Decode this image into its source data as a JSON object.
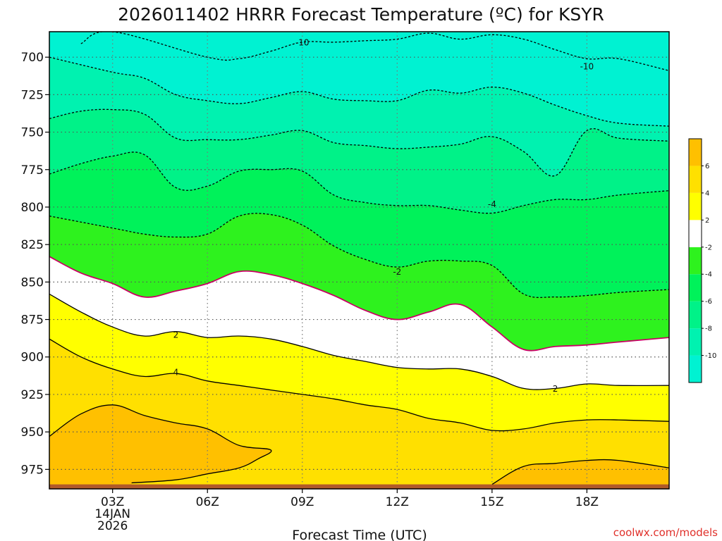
{
  "chart_data": {
    "type": "contour",
    "title": "2026011402 HRRR Forecast Temperature (ºC) for KSYR",
    "xlabel": "Forecast Time (UTC)",
    "ylabel": "",
    "credit": "coolwx.com/models",
    "xlim": [
      1.0,
      20.6
    ],
    "ylim": [
      988,
      683
    ],
    "x_ticks": [
      {
        "x": 3,
        "label": "03Z",
        "sub1": "14JAN",
        "sub2": "2026"
      },
      {
        "x": 6,
        "label": "06Z"
      },
      {
        "x": 9,
        "label": "09Z"
      },
      {
        "x": 12,
        "label": "12Z"
      },
      {
        "x": 15,
        "label": "15Z"
      },
      {
        "x": 18,
        "label": "18Z"
      }
    ],
    "y_ticks": [
      700,
      725,
      750,
      775,
      800,
      825,
      850,
      875,
      900,
      925,
      950,
      975
    ],
    "ground_top_hpa": 985,
    "colorbar": {
      "levels": [
        -12,
        -10,
        -8,
        -6,
        -4,
        -2,
        2,
        4,
        6,
        8
      ],
      "colors": [
        "#00f2d2",
        "#00f2b0",
        "#00f288",
        "#00f25a",
        "#2ef21e",
        "#ffffff",
        "#ffff00",
        "#ffe000",
        "#ffc000"
      ],
      "labels": [
        "-10",
        "-8",
        "-6",
        "-4",
        "-2",
        "2",
        "4",
        "6"
      ]
    },
    "contours": [
      {
        "level": -10,
        "style": "dashed",
        "color": "#000000",
        "fill": "#00f2d2",
        "points": [
          [
            2.0,
            691
          ],
          [
            3,
            683
          ],
          [
            6,
            700
          ],
          [
            7,
            701
          ],
          [
            8,
            696
          ],
          [
            9,
            690
          ],
          [
            10,
            690
          ],
          [
            11,
            689
          ],
          [
            12,
            688
          ],
          [
            13,
            684
          ],
          [
            14,
            688
          ],
          [
            15,
            685
          ],
          [
            16,
            688
          ],
          [
            17,
            695
          ],
          [
            18,
            701
          ],
          [
            19,
            701
          ],
          [
            20.6,
            709
          ]
        ]
      },
      {
        "level": -8,
        "style": "dashed",
        "color": "#000000",
        "fill": "#00f2b0",
        "points": [
          [
            1.0,
            700
          ],
          [
            3,
            710
          ],
          [
            4,
            714
          ],
          [
            5,
            725
          ],
          [
            6,
            729
          ],
          [
            7,
            731
          ],
          [
            8,
            727
          ],
          [
            9,
            723
          ],
          [
            10,
            728
          ],
          [
            11,
            729
          ],
          [
            12,
            729
          ],
          [
            13,
            722
          ],
          [
            14,
            724
          ],
          [
            15,
            720
          ],
          [
            16,
            724
          ],
          [
            17,
            732
          ],
          [
            18,
            739
          ],
          [
            19,
            744
          ],
          [
            20.6,
            746
          ]
        ]
      },
      {
        "level": -6,
        "style": "dashed",
        "color": "#000000",
        "fill": "#00f288",
        "points": [
          [
            1.0,
            741
          ],
          [
            2.0,
            736
          ],
          [
            3,
            735
          ],
          [
            4,
            738
          ],
          [
            5,
            754
          ],
          [
            6,
            755
          ],
          [
            7,
            755
          ],
          [
            8,
            752
          ],
          [
            9,
            749
          ],
          [
            10,
            757
          ],
          [
            11,
            759
          ],
          [
            12,
            761
          ],
          [
            13,
            760
          ],
          [
            14,
            758
          ],
          [
            15,
            753
          ],
          [
            16,
            763
          ],
          [
            17,
            779
          ],
          [
            18,
            749
          ],
          [
            19,
            754
          ],
          [
            20.6,
            756
          ]
        ]
      },
      {
        "level": -4,
        "style": "dashed",
        "color": "#000000",
        "fill": "#00f25a",
        "points": [
          [
            1.0,
            778
          ],
          [
            2.0,
            771
          ],
          [
            3,
            766
          ],
          [
            4,
            765
          ],
          [
            5,
            787
          ],
          [
            6,
            786
          ],
          [
            7,
            776
          ],
          [
            8,
            775
          ],
          [
            9,
            776
          ],
          [
            10,
            792
          ],
          [
            11,
            797
          ],
          [
            12,
            799
          ],
          [
            13,
            799
          ],
          [
            14,
            802
          ],
          [
            15,
            804
          ],
          [
            16,
            799
          ],
          [
            17,
            795
          ],
          [
            18,
            795
          ],
          [
            19,
            792
          ],
          [
            20.6,
            789
          ]
        ]
      },
      {
        "level": -2,
        "style": "dashed",
        "color": "#000000",
        "fill": "#2ef21e",
        "points": [
          [
            1.0,
            806
          ],
          [
            3,
            814
          ],
          [
            4,
            818
          ],
          [
            5,
            820
          ],
          [
            6,
            818
          ],
          [
            7,
            806
          ],
          [
            8,
            805
          ],
          [
            9,
            812
          ],
          [
            10,
            826
          ],
          [
            11,
            835
          ],
          [
            12,
            840
          ],
          [
            13,
            836
          ],
          [
            14,
            836
          ],
          [
            15,
            839
          ],
          [
            16,
            858
          ],
          [
            17,
            860
          ],
          [
            18,
            859
          ],
          [
            19,
            857
          ],
          [
            20.6,
            855
          ]
        ]
      },
      {
        "level": 0,
        "style": "solid",
        "color": "#c80064",
        "fill": "#ffffff",
        "points": [
          [
            1.0,
            833
          ],
          [
            2.0,
            844
          ],
          [
            3,
            851
          ],
          [
            4,
            860
          ],
          [
            5,
            856
          ],
          [
            6,
            851
          ],
          [
            7,
            843
          ],
          [
            8,
            845
          ],
          [
            9,
            851
          ],
          [
            10,
            859
          ],
          [
            11,
            869
          ],
          [
            12,
            875
          ],
          [
            13,
            870
          ],
          [
            14,
            865
          ],
          [
            15,
            880
          ],
          [
            16,
            895
          ],
          [
            17,
            893
          ],
          [
            18,
            892
          ],
          [
            19,
            890
          ],
          [
            20.6,
            887
          ]
        ]
      },
      {
        "level": 2,
        "style": "solid",
        "color": "#000000",
        "fill": "#ffff00",
        "points": [
          [
            1.0,
            858
          ],
          [
            2.0,
            870
          ],
          [
            3,
            880
          ],
          [
            4,
            886
          ],
          [
            5,
            883
          ],
          [
            6,
            887
          ],
          [
            7,
            886
          ],
          [
            8,
            888
          ],
          [
            9,
            893
          ],
          [
            10,
            899
          ],
          [
            11,
            903
          ],
          [
            12,
            907
          ],
          [
            13,
            908
          ],
          [
            14,
            908
          ],
          [
            15,
            913
          ],
          [
            16,
            921
          ],
          [
            17,
            921
          ],
          [
            18,
            918
          ],
          [
            19,
            919
          ],
          [
            20.6,
            919
          ]
        ]
      },
      {
        "level": 4,
        "style": "solid",
        "color": "#000000",
        "fill": "#ffe000",
        "points": [
          [
            1.0,
            888
          ],
          [
            2.0,
            900
          ],
          [
            3,
            908
          ],
          [
            4,
            913
          ],
          [
            5,
            911
          ],
          [
            6,
            916
          ],
          [
            7,
            919
          ],
          [
            8,
            922
          ],
          [
            9,
            925
          ],
          [
            10,
            928
          ],
          [
            11,
            932
          ],
          [
            12,
            935
          ],
          [
            13,
            941
          ],
          [
            14,
            944
          ],
          [
            15,
            949
          ],
          [
            16,
            948
          ],
          [
            17,
            944
          ],
          [
            18,
            942
          ],
          [
            19,
            942
          ],
          [
            20.6,
            943
          ]
        ]
      },
      {
        "level": 6,
        "style": "solid",
        "color": "#000000",
        "fill": "#ffc000",
        "points": [
          [
            1.0,
            953
          ],
          [
            2.0,
            938
          ],
          [
            3,
            932
          ],
          [
            4,
            939
          ],
          [
            5,
            944
          ],
          [
            6,
            948
          ],
          [
            7,
            959
          ],
          [
            8,
            962
          ],
          [
            7.6,
            968
          ],
          [
            7,
            974
          ],
          [
            6,
            978
          ],
          [
            5,
            982
          ],
          [
            3.6,
            984
          ]
        ]
      },
      {
        "level": 6,
        "style": "solid",
        "color": "#000000",
        "fill": "#ffc000",
        "points": [
          [
            15,
            985
          ],
          [
            16,
            973
          ],
          [
            17,
            971
          ],
          [
            18,
            969
          ],
          [
            19,
            969
          ],
          [
            20.6,
            974
          ]
        ]
      }
    ],
    "contour_labels": [
      {
        "text": "-10",
        "x": 9.0,
        "p": 690
      },
      {
        "text": "-10",
        "x": 18.0,
        "p": 706
      },
      {
        "text": "-4",
        "x": 15.0,
        "p": 798
      },
      {
        "text": "-2",
        "x": 12.0,
        "p": 843
      },
      {
        "text": "2",
        "x": 5.0,
        "p": 885
      },
      {
        "text": "4",
        "x": 5.0,
        "p": 910
      },
      {
        "text": "2",
        "x": 17.0,
        "p": 921
      }
    ]
  }
}
